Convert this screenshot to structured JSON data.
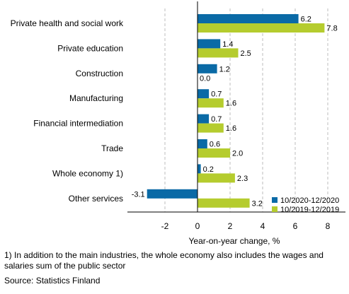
{
  "chart_data": {
    "type": "bar",
    "orientation": "horizontal",
    "categories": [
      "Private health and social work",
      "Private education",
      "Construction",
      "Manufacturing",
      "Financial intermediation",
      "Trade",
      "Whole economy 1)",
      "Other services"
    ],
    "series": [
      {
        "name": "10/2020-12/2020",
        "color": "#0a6aa6",
        "values": [
          6.2,
          1.4,
          1.2,
          0.7,
          0.7,
          0.6,
          0.2,
          -3.1
        ],
        "labels": [
          "6.2",
          "1.4",
          "1.2",
          "0.7",
          "0.7",
          "0.6",
          "0.2",
          "-3.1"
        ]
      },
      {
        "name": "10/2019-12/2019",
        "color": "#b5cc2e",
        "values": [
          7.8,
          2.5,
          0.0,
          1.6,
          1.6,
          2.0,
          2.3,
          3.2
        ],
        "labels": [
          "7.8",
          "2.5",
          "0.0",
          "1.6",
          "1.6",
          "2.0",
          "2.3",
          "3.2"
        ]
      }
    ],
    "xlim": [
      -4,
      9
    ],
    "xticks": [
      -2,
      0,
      2,
      4,
      6,
      8
    ],
    "xtick_labels": [
      "-2",
      "0",
      "2",
      "4",
      "6",
      "8"
    ],
    "xlabel": "Year-on-year change, %",
    "grid": "vertical dashed",
    "legend_position": "bottom-right"
  },
  "footnote": "1) In addition to the main industries, the whole economy also includes the wages and salaries sum of the public sector",
  "source": "Source: Statistics Finland"
}
